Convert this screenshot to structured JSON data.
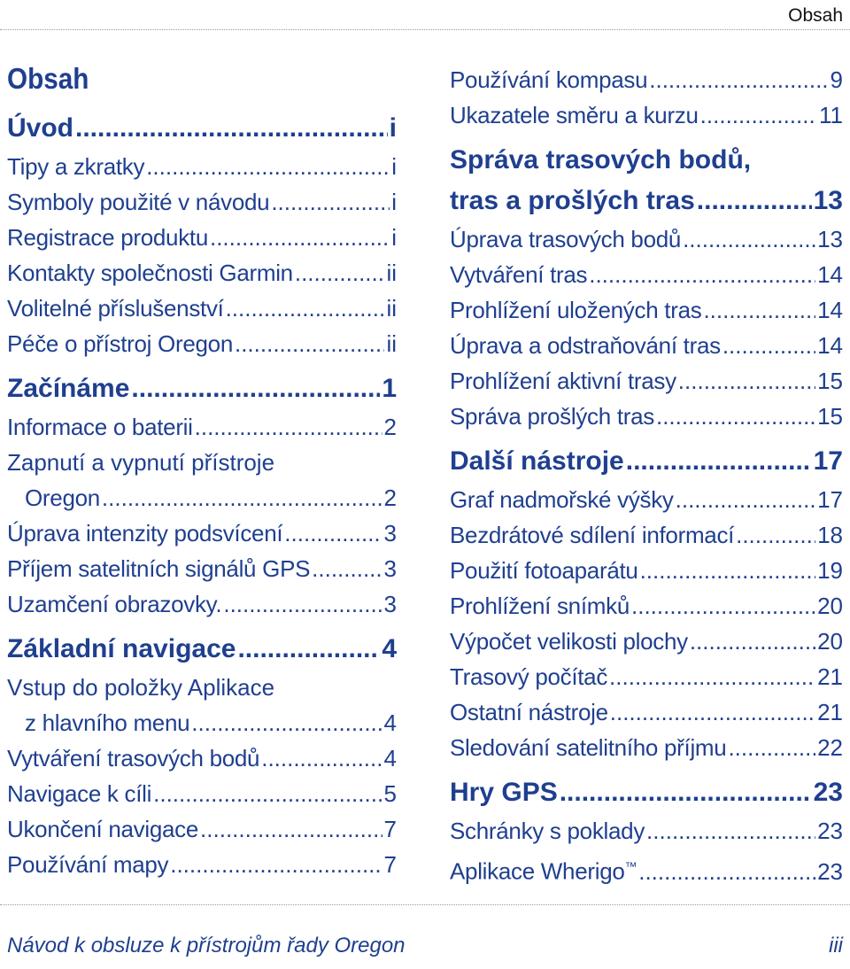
{
  "running_header": "Obsah",
  "toc_title": "Obsah",
  "left": {
    "s1": {
      "title": "Úvod",
      "page": "i"
    },
    "s1_items": [
      {
        "title": "Tipy a zkratky",
        "page": "i"
      },
      {
        "title": "Symboly použité v návodu",
        "page": "i"
      },
      {
        "title": "Registrace produktu",
        "page": "i"
      },
      {
        "title": "Kontakty společnosti Garmin",
        "page": "ii"
      },
      {
        "title": "Volitelné příslušenství",
        "page": "ii"
      },
      {
        "title": "Péče o přístroj Oregon",
        "page": "ii"
      }
    ],
    "s2": {
      "title": "Začínáme",
      "page": "1"
    },
    "s2_items": [
      {
        "title": "Informace o baterii",
        "page": "2"
      },
      {
        "title_line1": "Zapnutí a vypnutí přístroje",
        "title_line2": "Oregon",
        "page": "2"
      },
      {
        "title": "Úprava intenzity podsvícení",
        "page": "3"
      },
      {
        "title": "Příjem satelitních signálů GPS",
        "page": "3"
      },
      {
        "title": "Uzamčení obrazovky.",
        "page": "3"
      }
    ],
    "s3": {
      "title": "Základní navigace",
      "page": "4"
    },
    "s3_items": [
      {
        "title_line1": "Vstup do položky Aplikace",
        "title_line2": "z hlavního menu",
        "page": "4"
      },
      {
        "title": "Vytváření trasových bodů",
        "page": "4"
      },
      {
        "title": "Navigace k cíli",
        "page": "5"
      },
      {
        "title": "Ukončení navigace",
        "page": "7"
      },
      {
        "title": "Používání mapy",
        "page": "7"
      }
    ]
  },
  "right": {
    "pre_items": [
      {
        "title": "Používání kompasu",
        "page": "9"
      },
      {
        "title": "Ukazatele směru a kurzu",
        "page": "11"
      }
    ],
    "s4": {
      "title_line1": "Správa trasových bodů,",
      "title_line2": "tras a prošlých tras",
      "page": "13"
    },
    "s4_items": [
      {
        "title": "Úprava trasových bodů",
        "page": "13"
      },
      {
        "title": "Vytváření tras",
        "page": "14"
      },
      {
        "title": "Prohlížení uložených tras",
        "page": "14"
      },
      {
        "title": "Úprava a odstraňování tras",
        "page": "14"
      },
      {
        "title": "Prohlížení aktivní trasy",
        "page": "15"
      },
      {
        "title": "Správa prošlých tras",
        "page": "15"
      }
    ],
    "s5": {
      "title": "Další nástroje",
      "page": "17"
    },
    "s5_items": [
      {
        "title": "Graf nadmořské výšky",
        "page": "17"
      },
      {
        "title": "Bezdrátové sdílení informací",
        "page": "18"
      },
      {
        "title": "Použití fotoaparátu",
        "page": "19"
      },
      {
        "title": "Prohlížení snímků",
        "page": "20"
      },
      {
        "title": "Výpočet velikosti plochy",
        "page": "20"
      },
      {
        "title": "Trasový počítač",
        "page": "21"
      },
      {
        "title": "Ostatní nástroje",
        "page": "21"
      },
      {
        "title": "Sledování satelitního příjmu",
        "page": "22"
      }
    ],
    "s6": {
      "title": "Hry GPS",
      "page": "23"
    },
    "s6_items": [
      {
        "title": "Schránky s poklady",
        "page": "23"
      },
      {
        "title": "Aplikace Wherigo",
        "trademark": "™",
        "page": "23"
      }
    ]
  },
  "footer": {
    "left": "Návod k obsluze k přístrojům řady Oregon",
    "right": "iii"
  },
  "colors": {
    "text": "#1f3f8f",
    "rule": "#9a9a9a"
  }
}
